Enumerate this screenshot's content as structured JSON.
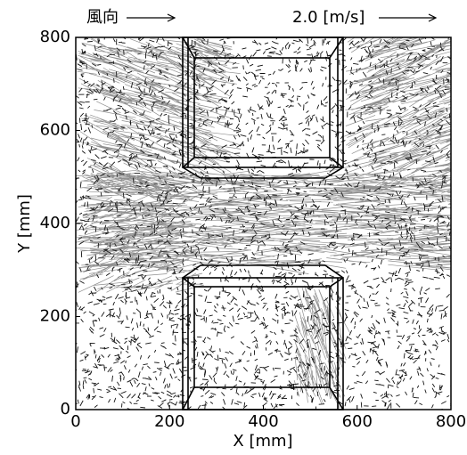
{
  "chart_data": {
    "type": "vector-field",
    "wind_direction_label": "風向",
    "scale_label": "2.0 [m/s]",
    "xlabel": "X [mm]",
    "ylabel": "Y [mm]",
    "xlim": [
      0,
      800
    ],
    "ylim": [
      0,
      800
    ],
    "xticks": [
      0,
      200,
      400,
      600,
      800
    ],
    "yticks": [
      0,
      200,
      400,
      600,
      800
    ],
    "color": "#000000"
  }
}
